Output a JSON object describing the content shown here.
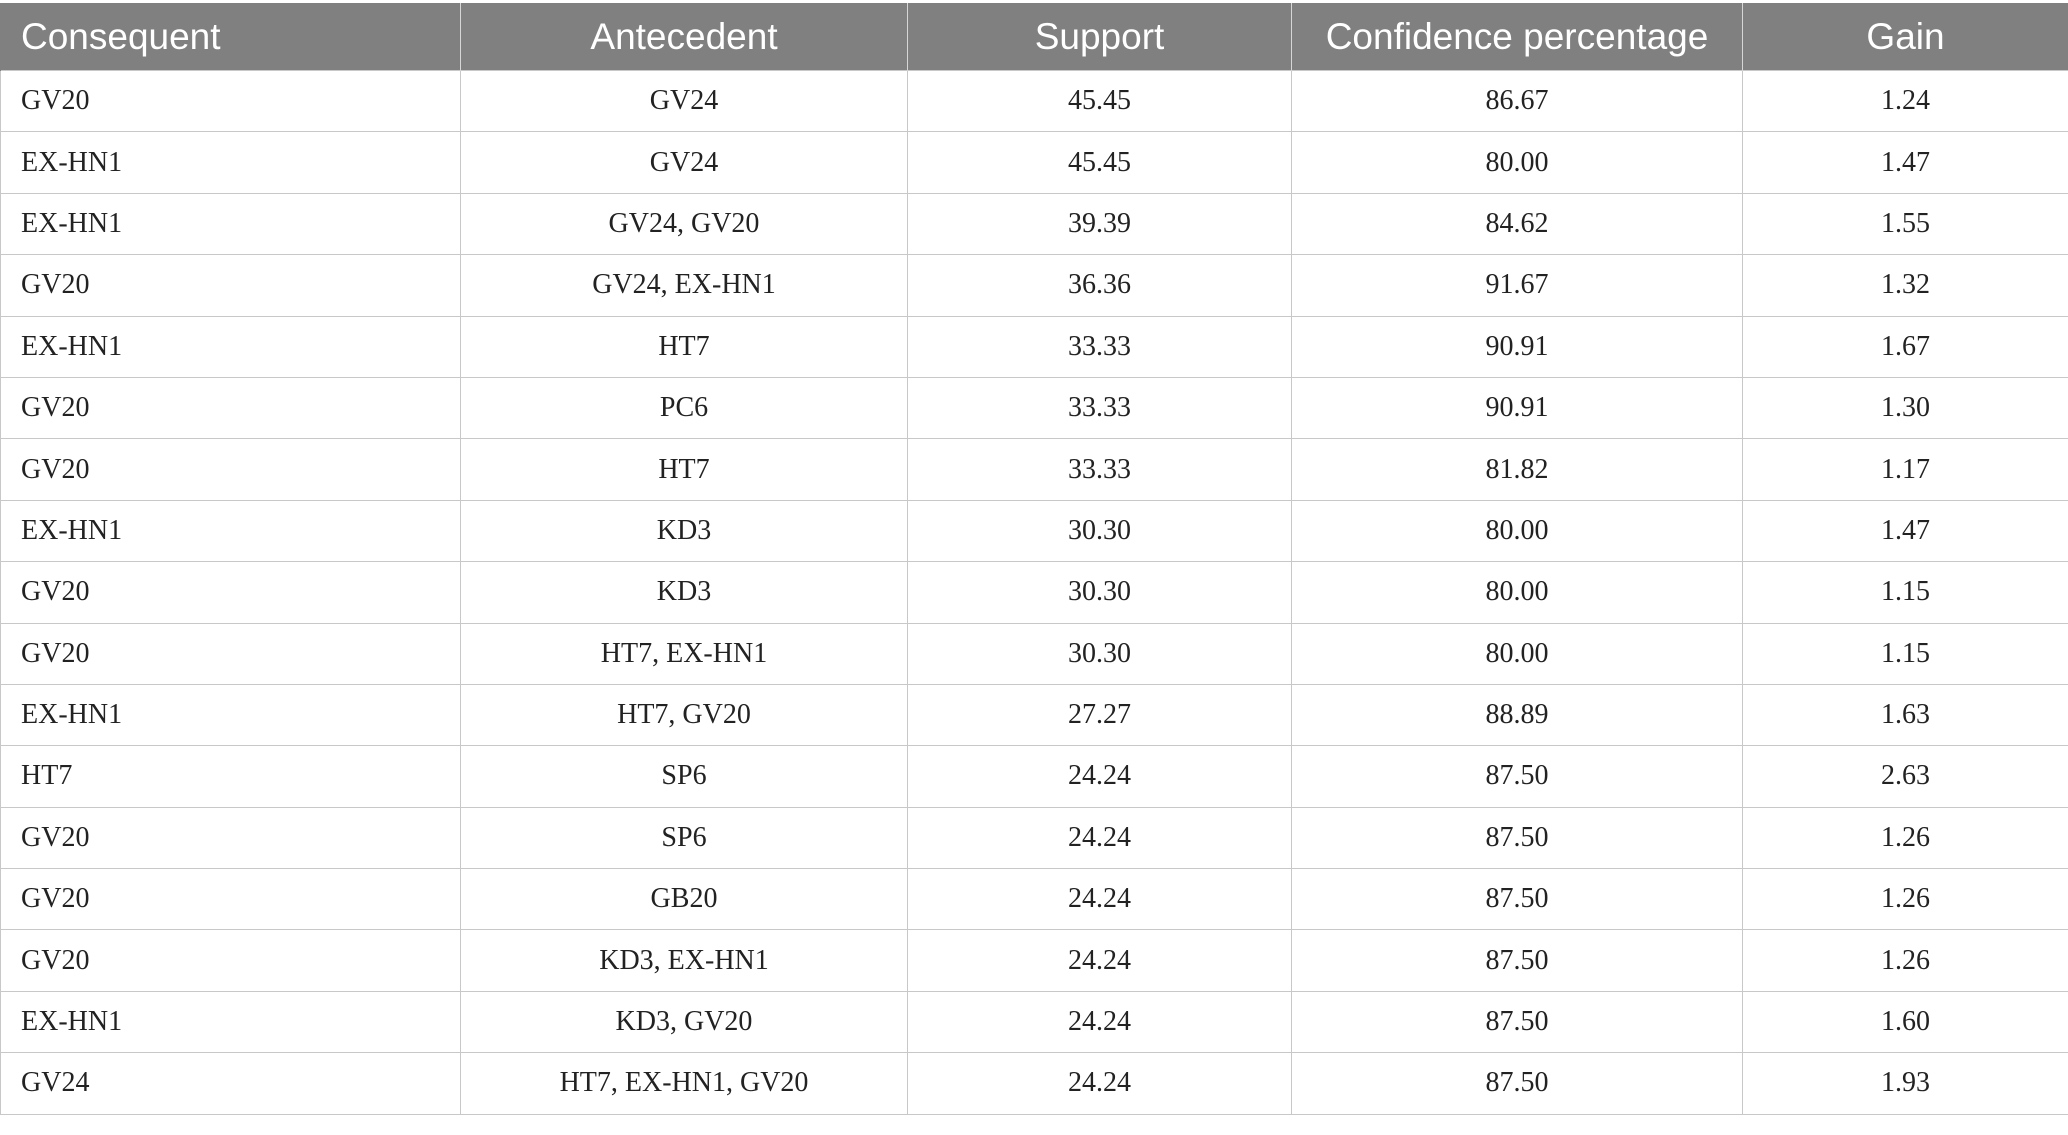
{
  "table": {
    "headers": [
      "Consequent",
      "Antecedent",
      "Support",
      "Confidence percentage",
      "Gain"
    ],
    "rows": [
      [
        "GV20",
        "GV24",
        "45.45",
        "86.67",
        "1.24"
      ],
      [
        "EX-HN1",
        "GV24",
        "45.45",
        "80.00",
        "1.47"
      ],
      [
        "EX-HN1",
        "GV24, GV20",
        "39.39",
        "84.62",
        "1.55"
      ],
      [
        "GV20",
        "GV24, EX-HN1",
        "36.36",
        "91.67",
        "1.32"
      ],
      [
        "EX-HN1",
        "HT7",
        "33.33",
        "90.91",
        "1.67"
      ],
      [
        "GV20",
        "PC6",
        "33.33",
        "90.91",
        "1.30"
      ],
      [
        "GV20",
        "HT7",
        "33.33",
        "81.82",
        "1.17"
      ],
      [
        "EX-HN1",
        "KD3",
        "30.30",
        "80.00",
        "1.47"
      ],
      [
        "GV20",
        "KD3",
        "30.30",
        "80.00",
        "1.15"
      ],
      [
        "GV20",
        "HT7, EX-HN1",
        "30.30",
        "80.00",
        "1.15"
      ],
      [
        "EX-HN1",
        "HT7, GV20",
        "27.27",
        "88.89",
        "1.63"
      ],
      [
        "HT7",
        "SP6",
        "24.24",
        "87.50",
        "2.63"
      ],
      [
        "GV20",
        "SP6",
        "24.24",
        "87.50",
        "1.26"
      ],
      [
        "GV20",
        "GB20",
        "24.24",
        "87.50",
        "1.26"
      ],
      [
        "GV20",
        "KD3, EX-HN1",
        "24.24",
        "87.50",
        "1.26"
      ],
      [
        "EX-HN1",
        "KD3, GV20",
        "24.24",
        "87.50",
        "1.60"
      ],
      [
        "GV24",
        "HT7, EX-HN1, GV20",
        "24.24",
        "87.50",
        "1.93"
      ]
    ]
  },
  "colors": {
    "header_background": "#808080",
    "header_text": "#ffffff",
    "grid_line": "#c8c8c8",
    "body_text": "#222222"
  }
}
